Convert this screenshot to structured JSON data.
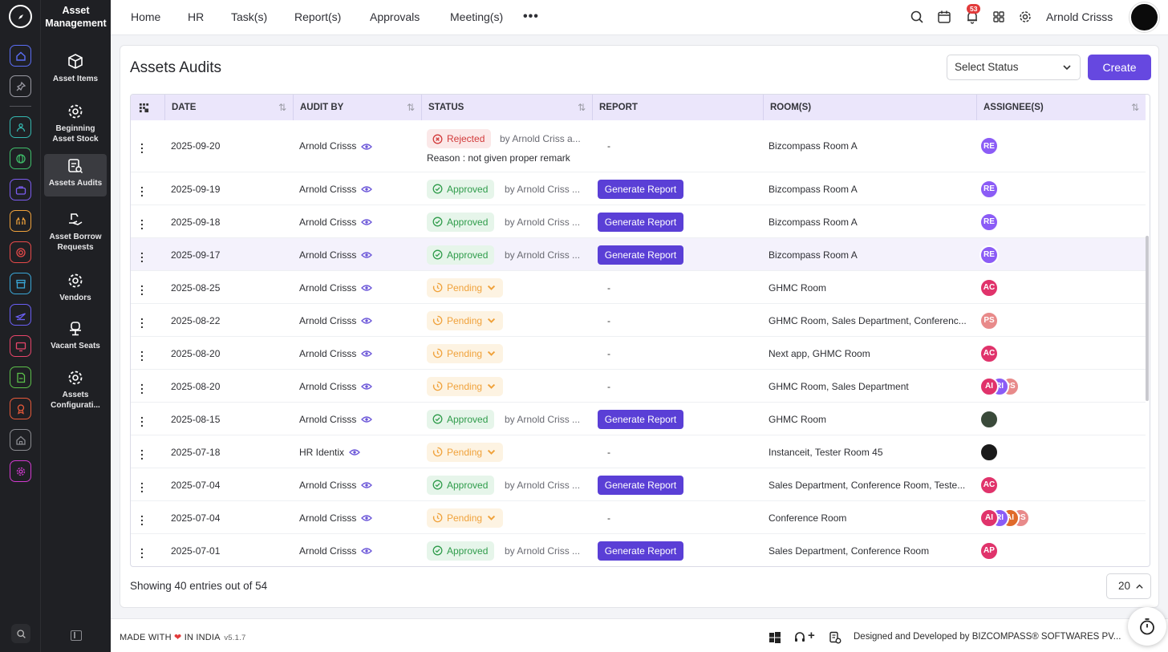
{
  "app": {
    "module_title": "Asset Management"
  },
  "rail": {
    "items": [
      {
        "name": "home-icon",
        "color": "#5b6ef5"
      },
      {
        "name": "pin-icon",
        "color": "#9a9aa3"
      },
      {
        "name": "people-icon",
        "color": "#35b8b0"
      },
      {
        "name": "globe-icon",
        "color": "#3fc06b"
      },
      {
        "name": "briefcase-icon",
        "color": "#7c5cf0"
      },
      {
        "name": "hands-icon",
        "color": "#f0a23b"
      },
      {
        "name": "target-icon",
        "color": "#e84a4a"
      },
      {
        "name": "archive-icon",
        "color": "#3aa7d8"
      },
      {
        "name": "plane-icon",
        "color": "#6a5ff5"
      },
      {
        "name": "monitor-icon",
        "color": "#e8456a"
      },
      {
        "name": "document-icon",
        "color": "#5cc04a"
      },
      {
        "name": "award-icon",
        "color": "#e85a3a"
      },
      {
        "name": "home-outline-icon",
        "color": "#8a8b90"
      },
      {
        "name": "settings-badge-icon",
        "color": "#d23ad0"
      }
    ]
  },
  "sidebar": {
    "items": [
      {
        "label": "Asset Items",
        "icon": "box-icon"
      },
      {
        "label": "Beginning Asset Stock",
        "icon": "gear-icon"
      },
      {
        "label": "Assets Audits",
        "icon": "audit-icon",
        "active": true
      },
      {
        "label": "Asset Borrow Requests",
        "icon": "hand-icon"
      },
      {
        "label": "Vendors",
        "icon": "gear-icon"
      },
      {
        "label": "Vacant Seats",
        "icon": "chair-icon"
      },
      {
        "label": "Assets Configurati...",
        "icon": "gear-icon"
      }
    ]
  },
  "topnav": {
    "links": [
      "Home",
      "HR",
      "Task(s)",
      "Report(s)",
      "Approvals",
      "Meeting(s)"
    ],
    "notification_count": "53",
    "user_name": "Arnold Crisss"
  },
  "page": {
    "title": "Assets Audits",
    "status_placeholder": "Select Status",
    "create_label": "Create",
    "showing": "Showing 40 entries out of 54",
    "page_size": "20"
  },
  "table": {
    "columns": [
      "DATE",
      "AUDIT BY",
      "STATUS",
      "REPORT",
      "ROOM(S)",
      "ASSIGNEE(S)"
    ],
    "generate_label": "Generate Report",
    "rows": [
      {
        "date": "2025-09-20",
        "audit_by": "Arnold Crisss",
        "status": "Rejected",
        "by": "by Arnold Criss a...",
        "reason": "Reason : not given proper remark",
        "report": "-",
        "rooms": "Bizcompass Room A",
        "assignees": [
          {
            "text": "RE",
            "color": "#8b5cf6"
          }
        ]
      },
      {
        "date": "2025-09-19",
        "audit_by": "Arnold Crisss",
        "status": "Approved",
        "by": "by Arnold Criss ...",
        "report": "Generate Report",
        "rooms": "Bizcompass Room A",
        "assignees": [
          {
            "text": "RE",
            "color": "#8b5cf6"
          }
        ]
      },
      {
        "date": "2025-09-18",
        "audit_by": "Arnold Crisss",
        "status": "Approved",
        "by": "by Arnold Criss ...",
        "report": "Generate Report",
        "rooms": "Bizcompass Room A",
        "assignees": [
          {
            "text": "RE",
            "color": "#8b5cf6"
          }
        ]
      },
      {
        "date": "2025-09-17",
        "audit_by": "Arnold Crisss",
        "status": "Approved",
        "by": "by Arnold Criss ...",
        "report": "Generate Report",
        "rooms": "Bizcompass Room A",
        "assignees": [
          {
            "text": "RE",
            "color": "#8b5cf6"
          }
        ]
      },
      {
        "date": "2025-08-25",
        "audit_by": "Arnold Crisss",
        "status": "Pending",
        "report": "-",
        "rooms": "GHMC Room",
        "assignees": [
          {
            "text": "AC",
            "color": "#e0336b"
          }
        ]
      },
      {
        "date": "2025-08-22",
        "audit_by": "Arnold Crisss",
        "status": "Pending",
        "report": "-",
        "rooms": "GHMC Room, Sales Department, Conferenc...",
        "assignees": [
          {
            "text": "PS",
            "color": "#e88a8a"
          }
        ]
      },
      {
        "date": "2025-08-20",
        "audit_by": "Arnold Crisss",
        "status": "Pending",
        "report": "-",
        "rooms": "Next app, GHMC Room",
        "assignees": [
          {
            "text": "AC",
            "color": "#e0336b"
          }
        ]
      },
      {
        "date": "2025-08-20",
        "audit_by": "Arnold Crisss",
        "status": "Pending",
        "report": "-",
        "rooms": "GHMC Room, Sales Department",
        "assignees": [
          {
            "text": "AI",
            "color": "#e0336b"
          },
          {
            "text": "RI",
            "color": "#8b5cf6"
          },
          {
            "text": "PS",
            "color": "#e88a8a"
          }
        ]
      },
      {
        "date": "2025-08-15",
        "audit_by": "Arnold Crisss",
        "status": "Approved",
        "by": "by Arnold Criss ...",
        "report": "Generate Report",
        "rooms": "GHMC Room",
        "assignees": [
          {
            "text": "",
            "color": "#3a4a3a"
          }
        ]
      },
      {
        "date": "2025-07-18",
        "audit_by": "HR Identix",
        "status": "Pending",
        "report": "-",
        "rooms": "Instanceit, Tester Room 45",
        "assignees": [
          {
            "text": "",
            "color": "#1a1a1a"
          }
        ]
      },
      {
        "date": "2025-07-04",
        "audit_by": "Arnold Crisss",
        "status": "Approved",
        "by": "by Arnold Criss ...",
        "report": "Generate Report",
        "rooms": "Sales Department, Conference Room, Teste...",
        "assignees": [
          {
            "text": "AC",
            "color": "#e0336b"
          }
        ]
      },
      {
        "date": "2025-07-04",
        "audit_by": "Arnold Crisss",
        "status": "Pending",
        "report": "-",
        "rooms": "Conference Room",
        "assignees": [
          {
            "text": "AI",
            "color": "#e0336b"
          },
          {
            "text": "RI",
            "color": "#8b5cf6"
          },
          {
            "text": "AI",
            "color": "#e06a2a"
          },
          {
            "text": "PS",
            "color": "#e88a8a"
          }
        ]
      },
      {
        "date": "2025-07-01",
        "audit_by": "Arnold Crisss",
        "status": "Approved",
        "by": "by Arnold Criss ...",
        "report": "Generate Report",
        "rooms": "Sales Department, Conference Room",
        "assignees": [
          {
            "text": "AP",
            "color": "#e0336b"
          }
        ]
      }
    ]
  },
  "footer": {
    "made_with": "MADE WITH",
    "in_india": "IN INDIA",
    "version": "v5.1.7",
    "designed_by": "Designed and Developed by",
    "company": "BIZCOMPASS® SOFTWARES PV..."
  },
  "colors": {
    "accent": "#6648e0",
    "sidebar_bg": "#1f2024",
    "header_bg": "#ebe6fb"
  }
}
